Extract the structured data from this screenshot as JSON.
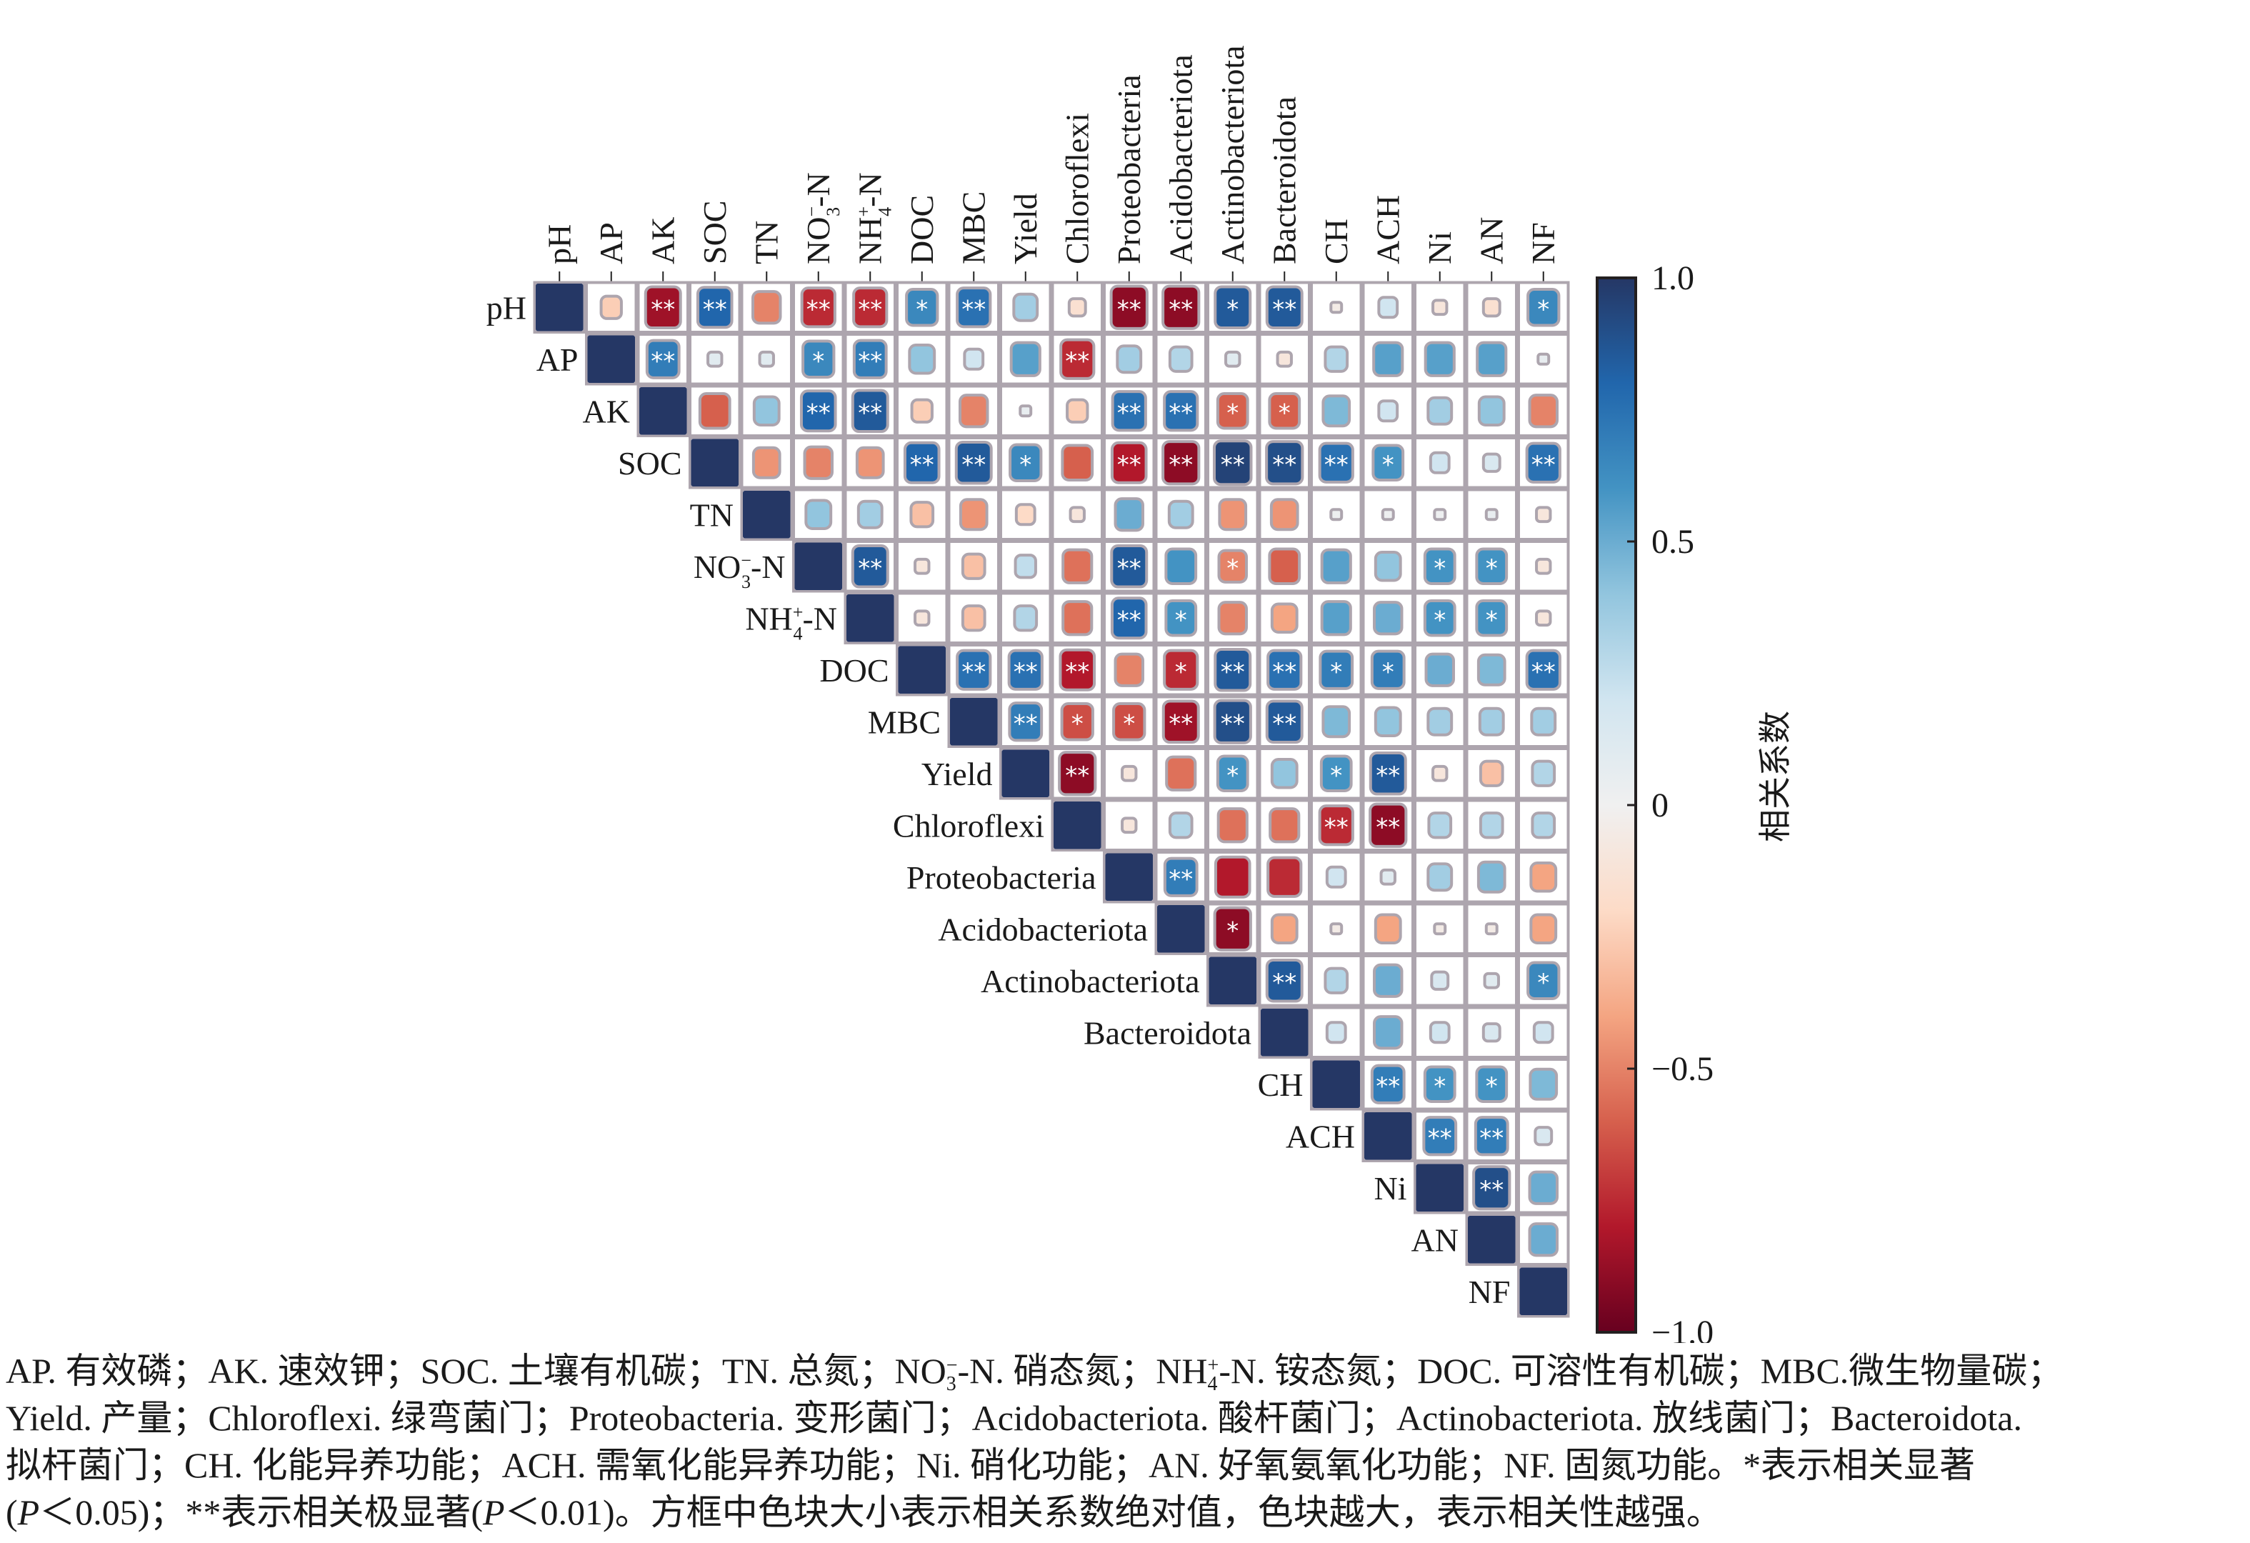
{
  "chart_data": {
    "type": "heatmap",
    "subtype": "correlation-matrix-upper-triangle",
    "variables": [
      {
        "name": "pH"
      },
      {
        "name": "AP"
      },
      {
        "name": "AK"
      },
      {
        "name": "SOC"
      },
      {
        "name": "TN"
      },
      {
        "name": "NO",
        "sub": "3",
        "sup": "−",
        "suffix": "-N"
      },
      {
        "name": "NH",
        "sub": "4",
        "sup": "+",
        "suffix": "-N"
      },
      {
        "name": "DOC"
      },
      {
        "name": "MBC"
      },
      {
        "name": "Yield"
      },
      {
        "name": "Chloroflexi"
      },
      {
        "name": "Proteobacteria"
      },
      {
        "name": "Acidobacteriota"
      },
      {
        "name": "Actinobacteriota"
      },
      {
        "name": "Bacteroidota"
      },
      {
        "name": "CH"
      },
      {
        "name": "ACH"
      },
      {
        "name": "Ni"
      },
      {
        "name": "AN"
      },
      {
        "name": "NF"
      }
    ],
    "matrix_note": "Upper triangle rows; each row i lists r for columns j>=i (first value is diagonal = 1).",
    "rows": [
      [
        1,
        -0.25,
        -0.85,
        0.8,
        -0.5,
        -0.75,
        -0.75,
        0.65,
        0.75,
        0.35,
        -0.15,
        -0.9,
        -0.9,
        0.85,
        0.85,
        -0.05,
        0.2,
        -0.1,
        -0.15,
        0.65
      ],
      [
        1,
        0.7,
        0.1,
        0.1,
        0.65,
        0.7,
        0.4,
        0.2,
        0.55,
        -0.75,
        0.35,
        0.3,
        0.1,
        -0.1,
        0.3,
        0.55,
        0.55,
        0.55,
        0.05
      ],
      [
        1,
        -0.6,
        0.4,
        0.8,
        0.85,
        -0.25,
        -0.5,
        0.05,
        -0.25,
        0.75,
        0.75,
        -0.6,
        -0.6,
        0.45,
        0.2,
        0.35,
        0.4,
        -0.5
      ],
      [
        1,
        -0.45,
        -0.5,
        -0.45,
        0.8,
        0.85,
        0.65,
        -0.6,
        -0.8,
        -0.9,
        0.95,
        0.9,
        0.75,
        0.6,
        0.2,
        0.15,
        0.75
      ],
      [
        1,
        0.4,
        0.35,
        -0.3,
        -0.45,
        -0.2,
        -0.1,
        0.5,
        0.35,
        -0.45,
        -0.45,
        0.02,
        0.02,
        0.02,
        0.05,
        -0.1
      ],
      [
        1,
        0.85,
        -0.1,
        -0.3,
        0.25,
        -0.55,
        0.85,
        0.6,
        -0.5,
        -0.6,
        0.55,
        0.4,
        0.6,
        0.6,
        -0.1
      ],
      [
        1,
        -0.1,
        -0.3,
        0.3,
        -0.55,
        0.8,
        0.6,
        -0.5,
        -0.4,
        0.55,
        0.5,
        0.6,
        0.6,
        -0.1
      ],
      [
        1,
        0.75,
        0.75,
        -0.8,
        -0.5,
        -0.75,
        0.85,
        0.75,
        0.7,
        0.7,
        0.5,
        0.45,
        0.75
      ],
      [
        1,
        0.7,
        -0.65,
        -0.65,
        -0.85,
        0.9,
        0.85,
        0.45,
        0.4,
        0.35,
        0.35,
        0.35
      ],
      [
        1,
        -0.9,
        -0.1,
        -0.55,
        0.6,
        0.4,
        0.6,
        0.85,
        -0.1,
        -0.3,
        0.3
      ],
      [
        1,
        -0.1,
        0.3,
        -0.55,
        -0.55,
        -0.75,
        -0.9,
        0.3,
        0.3,
        0.3
      ],
      [
        1,
        0.7,
        -0.8,
        -0.75,
        0.2,
        0.1,
        0.35,
        0.45,
        -0.4
      ],
      [
        1,
        -0.9,
        -0.4,
        -0.05,
        -0.4,
        -0.05,
        -0.05,
        -0.4
      ],
      [
        1,
        0.85,
        0.3,
        0.5,
        0.15,
        0.1,
        0.65
      ],
      [
        1,
        0.2,
        0.5,
        0.2,
        0.15,
        0.2
      ],
      [
        1,
        0.7,
        0.6,
        0.6,
        0.45
      ],
      [
        1,
        0.7,
        0.7,
        0.15
      ],
      [
        1,
        0.9,
        0.5
      ],
      [
        1,
        0.5
      ],
      [
        1
      ]
    ],
    "significance": [
      [
        "",
        "",
        "**",
        "**",
        "",
        "**",
        "**",
        "*",
        "**",
        "",
        "",
        "**",
        "**",
        "*",
        "**",
        "",
        "",
        "",
        "",
        "*"
      ],
      [
        "",
        "**",
        "",
        "",
        "*",
        "**",
        "",
        "",
        "",
        "**",
        "",
        "",
        "",
        "",
        "",
        "",
        "",
        "",
        ""
      ],
      [
        "",
        "",
        "",
        "**",
        "**",
        "",
        "",
        "",
        "",
        "**",
        "**",
        "*",
        "*",
        "",
        "",
        "",
        "",
        ""
      ],
      [
        "",
        "",
        "",
        "",
        "**",
        "**",
        "*",
        "",
        "**",
        "**",
        "**",
        "**",
        "**",
        "*",
        "",
        "",
        "**"
      ],
      [
        "",
        "",
        "",
        "",
        "",
        "",
        "",
        "",
        "",
        "",
        "",
        "",
        "",
        "",
        "",
        ""
      ],
      [
        "",
        "**",
        "",
        "",
        "",
        "",
        "**",
        "",
        "*",
        "",
        "",
        "",
        "*",
        "*",
        ""
      ],
      [
        "",
        "",
        "",
        "",
        "",
        "**",
        "*",
        "",
        "",
        "",
        "",
        "*",
        "*",
        ""
      ],
      [
        "",
        "**",
        "**",
        "**",
        "",
        "*",
        "**",
        "**",
        "*",
        "*",
        "",
        "",
        "**"
      ],
      [
        "",
        "**",
        "*",
        "*",
        "**",
        "**",
        "**",
        "",
        "",
        "",
        "",
        ""
      ],
      [
        "",
        "**",
        "",
        "",
        "*",
        "",
        "*",
        "**",
        "",
        "",
        ""
      ],
      [
        "",
        "",
        "",
        "",
        "",
        "**",
        "**",
        "",
        "",
        ""
      ],
      [
        "",
        "**",
        "",
        "",
        "",
        "",
        "",
        "",
        ""
      ],
      [
        "",
        "*",
        "",
        "",
        "",
        "",
        "",
        ""
      ],
      [
        "",
        "**",
        "",
        "",
        "",
        "",
        "*"
      ],
      [
        "",
        "",
        "",
        "",
        "",
        ""
      ],
      [
        "",
        "**",
        "*",
        "*",
        ""
      ],
      [
        "",
        "**",
        "**",
        ""
      ],
      [
        "",
        "**",
        ""
      ],
      [
        "",
        ""
      ],
      [
        ""
      ]
    ],
    "colorbar": {
      "title": "相关系数",
      "range": [
        -1.0,
        1.0
      ],
      "ticks": [
        1.0,
        0.5,
        0,
        -0.5,
        -1.0
      ],
      "tick_labels": [
        "1.0",
        "0.5",
        "0",
        "−0.5",
        "−1.0"
      ],
      "colormap": "RdBu",
      "stops": [
        "#67001f",
        "#b2182b",
        "#d6604d",
        "#f4a582",
        "#fddbc7",
        "#f0f0f0",
        "#d1e5f0",
        "#92c5de",
        "#4393c3",
        "#2166ac",
        "#253765"
      ],
      "placement": "right"
    },
    "cell_colors": {
      "frame": "#ada5ae",
      "cell_bg": "#ffffff",
      "star": "#ffffff"
    },
    "xlabel": "",
    "ylabel": "",
    "title": "",
    "grid": true
  },
  "caption": {
    "lines": [
      [
        {
          "t": "AP. 有效磷；AK. 速效钾；SOC. 土壤有机碳；TN. 总氮；NO"
        },
        {
          "sub": "3",
          "sup": "−"
        },
        {
          "t": "-N. 硝态氮；NH"
        },
        {
          "sub": "4",
          "sup": "+"
        },
        {
          "t": "-N. 铵态氮；DOC. 可溶性有机碳；MBC.微生物量碳；"
        }
      ],
      [
        {
          "t": "Yield. 产量；Chloroflexi. 绿弯菌门；Proteobacteria. 变形菌门；Acidobacteriota. 酸杆菌门；Actinobacteriota. 放线菌门；Bacteroidota."
        }
      ],
      [
        {
          "t": "拟杆菌门；CH. 化能异养功能；ACH. 需氧化能异养功能；Ni. 硝化功能；AN. 好氧氨氧化功能；NF. 固氮功能。*表示相关显著"
        }
      ],
      [
        {
          "t": "("
        },
        {
          "i": "P"
        },
        {
          "t": "＜0.05)；**表示相关极显著("
        },
        {
          "i": "P"
        },
        {
          "t": "＜0.01)。方框中色块大小表示相关系数绝对值，色块越大，表示相关性越强。"
        }
      ]
    ]
  }
}
